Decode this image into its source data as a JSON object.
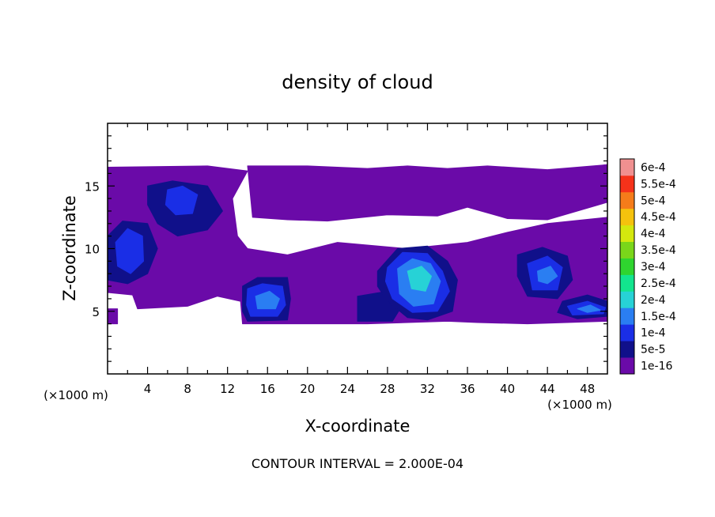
{
  "chart_data": {
    "type": "heatmap",
    "title": "density of cloud",
    "xlabel": "X-coordinate",
    "ylabel": "Z-coordinate",
    "x_units": "(×1000 m)",
    "x_units_right": "(×1000 m)",
    "xlim": [
      0,
      50
    ],
    "ylim": [
      0,
      20
    ],
    "x_ticks": [
      4,
      8,
      12,
      16,
      20,
      24,
      28,
      32,
      36,
      40,
      44,
      48
    ],
    "y_ticks": [
      5,
      10,
      15
    ],
    "footer": "CONTOUR INTERVAL = 2.000E-04",
    "colorbar": {
      "labels": [
        "1e-16",
        "5e-5",
        "1e-4",
        "1.5e-4",
        "2e-4",
        "2.5e-4",
        "3e-4",
        "3.5e-4",
        "4e-4",
        "4.5e-4",
        "5e-4",
        "5.5e-4",
        "6e-4"
      ],
      "colors": [
        "#6a0aa8",
        "#10108a",
        "#1a2ee6",
        "#2a7ef2",
        "#27d2d6",
        "#12e58e",
        "#2fd52f",
        "#7ad61a",
        "#d4e80e",
        "#f5c20d",
        "#f57c1a",
        "#f5321a",
        "#f09090"
      ]
    },
    "regions": [
      {
        "level": 0,
        "poly": [
          [
            0,
            16.5
          ],
          [
            10,
            16.6
          ],
          [
            14,
            16.2
          ],
          [
            12.5,
            14
          ],
          [
            13,
            11
          ],
          [
            14,
            10
          ],
          [
            18,
            9.5
          ],
          [
            23,
            10.5
          ],
          [
            30,
            10
          ],
          [
            36,
            10.5
          ],
          [
            40,
            11.3
          ],
          [
            44,
            12
          ],
          [
            50,
            12.5
          ],
          [
            50,
            4.2
          ],
          [
            42,
            4
          ],
          [
            37,
            4.1
          ],
          [
            34,
            4.2
          ],
          [
            26,
            4
          ],
          [
            22,
            4
          ],
          [
            16,
            4
          ],
          [
            13.5,
            4
          ],
          [
            13.3,
            5.8
          ],
          [
            11,
            6.2
          ],
          [
            8,
            5.4
          ],
          [
            3,
            5.2
          ],
          [
            2.5,
            6.3
          ],
          [
            0,
            6.5
          ]
        ]
      },
      {
        "level": 0,
        "poly": [
          [
            14,
            16.6
          ],
          [
            20,
            16.6
          ],
          [
            26,
            16.4
          ],
          [
            30,
            16.6
          ],
          [
            34,
            16.4
          ],
          [
            38,
            16.6
          ],
          [
            44,
            16.3
          ],
          [
            50,
            16.7
          ],
          [
            50,
            13.7
          ],
          [
            44,
            12.3
          ],
          [
            40,
            12.4
          ],
          [
            36,
            13.3
          ],
          [
            33,
            12.6
          ],
          [
            28,
            12.7
          ],
          [
            22,
            12.2
          ],
          [
            18,
            12.3
          ],
          [
            14.5,
            12.5
          ]
        ]
      },
      {
        "level": 0,
        "poly": [
          [
            0,
            5.2
          ],
          [
            1,
            5.2
          ],
          [
            1,
            4
          ],
          [
            0,
            4
          ]
        ]
      },
      {
        "level": 1,
        "poly": [
          [
            0,
            11
          ],
          [
            1.5,
            12.2
          ],
          [
            4,
            12
          ],
          [
            5,
            10
          ],
          [
            4,
            8
          ],
          [
            2,
            7.2
          ],
          [
            0,
            7.5
          ]
        ]
      },
      {
        "level": 1,
        "poly": [
          [
            4,
            15
          ],
          [
            6.5,
            15.4
          ],
          [
            10,
            15
          ],
          [
            11.5,
            13
          ],
          [
            10,
            11.5
          ],
          [
            7,
            11
          ],
          [
            5,
            12
          ],
          [
            4,
            13.5
          ]
        ]
      },
      {
        "level": 1,
        "poly": [
          [
            13.5,
            7
          ],
          [
            15,
            7.7
          ],
          [
            18,
            7.7
          ],
          [
            18.3,
            6
          ],
          [
            18,
            4.3
          ],
          [
            14,
            4.2
          ],
          [
            13.5,
            5
          ]
        ]
      },
      {
        "level": 1,
        "poly": [
          [
            25,
            6.2
          ],
          [
            28,
            6.6
          ],
          [
            29.5,
            5.5
          ],
          [
            28.5,
            4.2
          ],
          [
            25,
            4.2
          ]
        ]
      },
      {
        "level": 1,
        "poly": [
          [
            27,
            8.2
          ],
          [
            29,
            10
          ],
          [
            32,
            10.2
          ],
          [
            34,
            9
          ],
          [
            35,
            7.5
          ],
          [
            34.5,
            5
          ],
          [
            32,
            4.3
          ],
          [
            30,
            4.5
          ],
          [
            28,
            5.8
          ],
          [
            27,
            7
          ]
        ]
      },
      {
        "level": 1,
        "poly": [
          [
            41,
            9.5
          ],
          [
            43.5,
            10.1
          ],
          [
            46,
            9.4
          ],
          [
            46.5,
            7.5
          ],
          [
            45,
            6
          ],
          [
            42,
            6.2
          ],
          [
            41,
            7.8
          ]
        ]
      },
      {
        "level": 1,
        "poly": [
          [
            45.5,
            5.8
          ],
          [
            48,
            6.3
          ],
          [
            50,
            5.8
          ],
          [
            50,
            4.6
          ],
          [
            47,
            4.4
          ],
          [
            45,
            4.9
          ]
        ]
      },
      {
        "level": 2,
        "poly": [
          [
            0.8,
            10.5
          ],
          [
            2,
            11.6
          ],
          [
            3.5,
            11
          ],
          [
            3.6,
            9
          ],
          [
            2.3,
            8
          ],
          [
            1,
            8.6
          ]
        ]
      },
      {
        "level": 2,
        "poly": [
          [
            6,
            14.7
          ],
          [
            7.5,
            15
          ],
          [
            9,
            14.3
          ],
          [
            8.5,
            12.8
          ],
          [
            6.8,
            12.7
          ],
          [
            5.8,
            13.5
          ]
        ]
      },
      {
        "level": 2,
        "poly": [
          [
            14,
            6.8
          ],
          [
            15.5,
            7.2
          ],
          [
            17.5,
            7
          ],
          [
            17.8,
            5.5
          ],
          [
            17,
            4.6
          ],
          [
            14.3,
            4.6
          ],
          [
            13.9,
            5.5
          ]
        ]
      },
      {
        "level": 2,
        "poly": [
          [
            28,
            8.5
          ],
          [
            29.5,
            9.7
          ],
          [
            32,
            9.6
          ],
          [
            33.5,
            8.2
          ],
          [
            34.2,
            6.6
          ],
          [
            33,
            5
          ],
          [
            30.5,
            4.9
          ],
          [
            28.5,
            6
          ],
          [
            27.8,
            7.4
          ]
        ]
      },
      {
        "level": 2,
        "poly": [
          [
            42,
            8.8
          ],
          [
            44,
            9.4
          ],
          [
            45.5,
            8.5
          ],
          [
            45,
            6.7
          ],
          [
            42.5,
            6.7
          ]
        ]
      },
      {
        "level": 2,
        "poly": [
          [
            46,
            5.4
          ],
          [
            48,
            5.8
          ],
          [
            49.8,
            5.3
          ],
          [
            49.6,
            4.8
          ],
          [
            46.5,
            4.7
          ]
        ]
      },
      {
        "level": 3,
        "poly": [
          [
            14.8,
            6.2
          ],
          [
            16.2,
            6.6
          ],
          [
            17.2,
            6
          ],
          [
            16.8,
            5.2
          ],
          [
            15,
            5.2
          ]
        ]
      },
      {
        "level": 3,
        "poly": [
          [
            29,
            8.4
          ],
          [
            30.5,
            9.2
          ],
          [
            32.3,
            8.8
          ],
          [
            33.3,
            7.4
          ],
          [
            32.6,
            5.6
          ],
          [
            30.6,
            5.4
          ],
          [
            29.2,
            6.4
          ]
        ]
      },
      {
        "level": 3,
        "poly": [
          [
            43,
            8.2
          ],
          [
            44.3,
            8.6
          ],
          [
            45,
            7.8
          ],
          [
            44,
            7.2
          ],
          [
            43.1,
            7.4
          ]
        ]
      },
      {
        "level": 3,
        "poly": [
          [
            47,
            5.2
          ],
          [
            48.3,
            5.5
          ],
          [
            49.3,
            5.1
          ],
          [
            48,
            4.9
          ]
        ]
      },
      {
        "level": 4,
        "poly": [
          [
            30,
            8.2
          ],
          [
            31.4,
            8.6
          ],
          [
            32.4,
            7.8
          ],
          [
            31.8,
            6.6
          ],
          [
            30.4,
            6.8
          ]
        ]
      }
    ]
  }
}
